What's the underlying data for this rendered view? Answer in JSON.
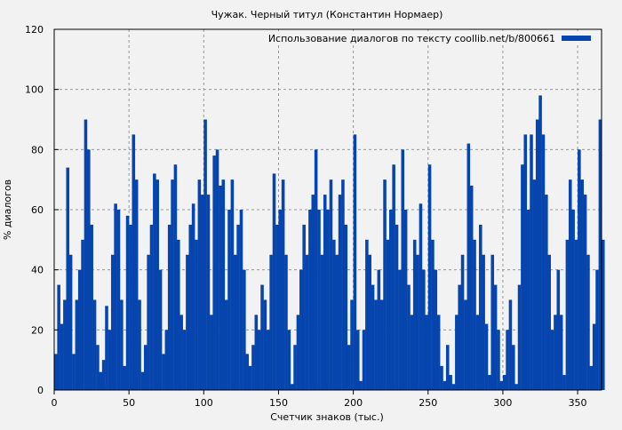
{
  "chart_data": {
    "type": "bar",
    "title": "Чужак. Черный титул (Константин Нормаер)",
    "xlabel": "Счетчик знаков (тыс.)",
    "ylabel": "% диалогов",
    "xlim": [
      0,
      366
    ],
    "ylim": [
      0,
      120
    ],
    "xticks": [
      0,
      50,
      100,
      150,
      200,
      250,
      300,
      350
    ],
    "yticks": [
      0,
      20,
      40,
      60,
      80,
      100,
      120
    ],
    "grid": true,
    "legend_position": "top-right",
    "bar_color": "#0645ad",
    "series": [
      {
        "name": "Использование диалогов по тексту coollib.net/b/800661",
        "x_step": 2,
        "values": [
          12,
          35,
          22,
          30,
          74,
          45,
          12,
          30,
          40,
          50,
          90,
          80,
          55,
          30,
          15,
          6,
          10,
          28,
          20,
          45,
          62,
          60,
          30,
          8,
          58,
          55,
          85,
          70,
          30,
          6,
          15,
          45,
          55,
          72,
          70,
          40,
          12,
          20,
          55,
          70,
          75,
          50,
          25,
          20,
          45,
          55,
          62,
          50,
          70,
          65,
          90,
          65,
          25,
          78,
          80,
          68,
          70,
          30,
          60,
          70,
          45,
          55,
          60,
          40,
          12,
          8,
          15,
          25,
          20,
          35,
          30,
          20,
          45,
          72,
          55,
          60,
          70,
          45,
          20,
          2,
          15,
          25,
          40,
          55,
          45,
          60,
          65,
          80,
          60,
          45,
          65,
          60,
          70,
          50,
          45,
          65,
          70,
          55,
          15,
          30,
          85,
          20,
          3,
          20,
          50,
          45,
          35,
          30,
          40,
          30,
          70,
          50,
          60,
          75,
          55,
          40,
          80,
          60,
          35,
          25,
          50,
          45,
          62,
          40,
          25,
          75,
          50,
          40,
          25,
          8,
          3,
          15,
          5,
          2,
          25,
          35,
          45,
          30,
          82,
          68,
          50,
          25,
          55,
          45,
          22,
          5,
          45,
          35,
          20,
          3,
          5,
          20,
          30,
          15,
          2,
          35,
          75,
          85,
          60,
          85,
          70,
          90,
          98,
          85,
          65,
          45,
          20,
          25,
          40,
          25,
          5,
          50,
          70,
          60,
          50,
          80,
          70,
          65,
          45,
          8,
          22,
          40,
          90,
          50
        ]
      }
    ]
  }
}
